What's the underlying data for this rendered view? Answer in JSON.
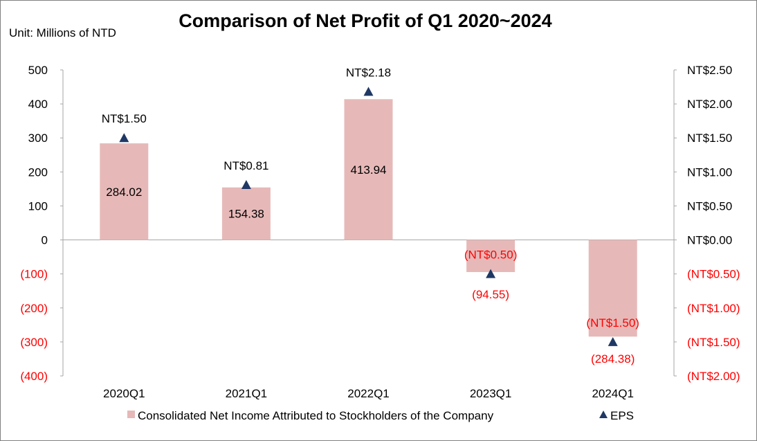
{
  "chart_data": {
    "type": "bar",
    "title": "Comparison of Net Profit of Q1 2020~2024",
    "unit_label": "Unit: Millions of NTD",
    "categories": [
      "2020Q1",
      "2021Q1",
      "2022Q1",
      "2023Q1",
      "2024Q1"
    ],
    "series": [
      {
        "name": "Consolidated Net Income Attributed to Stockholders of the Company",
        "kind": "bar",
        "axis": "left",
        "color": "#e6b9b8",
        "values": [
          284.02,
          154.38,
          413.94,
          -94.55,
          -284.38
        ],
        "labels": [
          "284.02",
          "154.38",
          "413.94",
          "(94.55)",
          "(284.38)"
        ]
      },
      {
        "name": "EPS",
        "kind": "marker",
        "marker": "triangle",
        "axis": "right",
        "color": "#1f3864",
        "values": [
          1.5,
          0.81,
          2.18,
          -0.5,
          -1.5
        ],
        "labels": [
          "NT$1.50",
          "NT$0.81",
          "NT$2.18",
          "(NT$0.50)",
          "(NT$1.50)"
        ]
      }
    ],
    "y_left": {
      "ylim": [
        -400,
        500
      ],
      "ticks": [
        500,
        400,
        300,
        200,
        100,
        0,
        -100,
        -200,
        -300,
        -400
      ],
      "tick_labels": [
        "500",
        "400",
        "300",
        "200",
        "100",
        "0",
        "(100)",
        "(200)",
        "(300)",
        "(400)"
      ]
    },
    "y_right": {
      "ylim": [
        -2.0,
        2.5
      ],
      "ticks": [
        2.5,
        2.0,
        1.5,
        1.0,
        0.5,
        0.0,
        -0.5,
        -1.0,
        -1.5,
        -2.0
      ],
      "tick_labels": [
        "NT$2.50",
        "NT$2.00",
        "NT$1.50",
        "NT$1.00",
        "NT$0.50",
        "NT$0.00",
        "(NT$0.50)",
        "(NT$1.00)",
        "(NT$1.50)",
        "(NT$2.00)"
      ]
    },
    "negative_color": "#ff0000",
    "grid": false,
    "legend_position": "bottom"
  }
}
